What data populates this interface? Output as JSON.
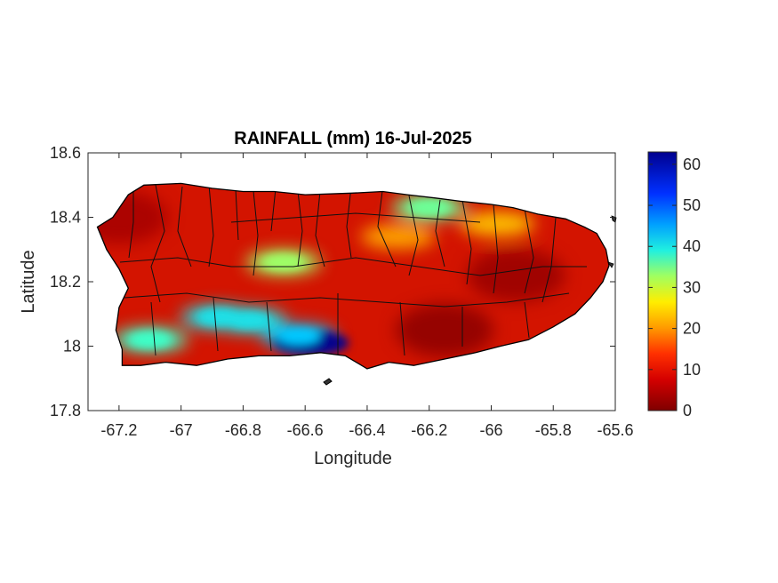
{
  "chart_data": {
    "type": "heatmap",
    "title": "RAINFALL (mm) 16-Jul-2025",
    "xlabel": "Longitude",
    "ylabel": "Latitude",
    "xlim": [
      -67.3,
      -65.6
    ],
    "ylim": [
      17.8,
      18.6
    ],
    "xticks": [
      -67.2,
      -67.0,
      -66.8,
      -66.6,
      -66.4,
      -66.2,
      -66.0,
      -65.8,
      -65.6
    ],
    "xtick_labels": [
      "-67.2",
      "-67",
      "-66.8",
      "-66.6",
      "-66.4",
      "-66.2",
      "-66",
      "-65.8",
      "-65.6"
    ],
    "yticks": [
      17.8,
      18.0,
      18.2,
      18.4,
      18.6
    ],
    "ytick_labels": [
      "17.8",
      "18",
      "18.2",
      "18.4",
      "18.6"
    ],
    "colorbar": {
      "min": 0,
      "max": 63,
      "ticks": [
        0,
        10,
        20,
        30,
        40,
        50,
        60
      ],
      "tick_labels": [
        "0",
        "10",
        "20",
        "30",
        "40",
        "50",
        "60"
      ],
      "colormap": "jet-reversed",
      "colors": [
        "#7f0000",
        "#ff0000",
        "#ff8000",
        "#ffff00",
        "#80ff80",
        "#00ffff",
        "#0080ff",
        "#0000ff",
        "#00008f"
      ]
    },
    "outline": [
      [
        -67.27,
        18.37
      ],
      [
        -67.22,
        18.4
      ],
      [
        -67.17,
        18.47
      ],
      [
        -67.12,
        18.5
      ],
      [
        -67.0,
        18.505
      ],
      [
        -66.9,
        18.49
      ],
      [
        -66.8,
        18.48
      ],
      [
        -66.7,
        18.48
      ],
      [
        -66.6,
        18.47
      ],
      [
        -66.45,
        18.475
      ],
      [
        -66.35,
        18.48
      ],
      [
        -66.27,
        18.47
      ],
      [
        -66.18,
        18.46
      ],
      [
        -66.1,
        18.45
      ],
      [
        -66.0,
        18.44
      ],
      [
        -65.93,
        18.43
      ],
      [
        -65.85,
        18.41
      ],
      [
        -65.76,
        18.395
      ],
      [
        -65.7,
        18.37
      ],
      [
        -65.66,
        18.35
      ],
      [
        -65.63,
        18.3
      ],
      [
        -65.62,
        18.25
      ],
      [
        -65.64,
        18.2
      ],
      [
        -65.68,
        18.15
      ],
      [
        -65.73,
        18.1
      ],
      [
        -65.8,
        18.06
      ],
      [
        -65.88,
        18.02
      ],
      [
        -65.97,
        18.0
      ],
      [
        -66.05,
        17.98
      ],
      [
        -66.15,
        17.96
      ],
      [
        -66.25,
        17.94
      ],
      [
        -66.33,
        17.95
      ],
      [
        -66.4,
        17.93
      ],
      [
        -66.47,
        17.97
      ],
      [
        -66.55,
        17.98
      ],
      [
        -66.65,
        17.97
      ],
      [
        -66.75,
        17.97
      ],
      [
        -66.85,
        17.96
      ],
      [
        -66.95,
        17.94
      ],
      [
        -67.05,
        17.95
      ],
      [
        -67.13,
        17.94
      ],
      [
        -67.19,
        17.94
      ],
      [
        -67.19,
        17.99
      ],
      [
        -67.21,
        18.05
      ],
      [
        -67.2,
        18.12
      ],
      [
        -67.17,
        18.18
      ],
      [
        -67.2,
        18.24
      ],
      [
        -67.24,
        18.3
      ]
    ],
    "rain_features": [
      {
        "lon": -66.58,
        "lat": 18.01,
        "value": 63
      },
      {
        "lon": -66.62,
        "lat": 18.03,
        "value": 45
      },
      {
        "lon": -66.78,
        "lat": 18.08,
        "value": 42
      },
      {
        "lon": -66.88,
        "lat": 18.09,
        "value": 42
      },
      {
        "lon": -67.1,
        "lat": 18.02,
        "value": 38
      },
      {
        "lon": -66.2,
        "lat": 18.43,
        "value": 35
      },
      {
        "lon": -66.67,
        "lat": 18.26,
        "value": 32
      },
      {
        "lon": -65.98,
        "lat": 18.38,
        "value": 22
      },
      {
        "lon": -66.3,
        "lat": 18.34,
        "value": 20
      },
      {
        "lon": -66.15,
        "lat": 18.05,
        "value": 1
      },
      {
        "lon": -65.92,
        "lat": 18.22,
        "value": 2
      },
      {
        "lon": -67.2,
        "lat": 18.4,
        "value": 3
      }
    ]
  }
}
